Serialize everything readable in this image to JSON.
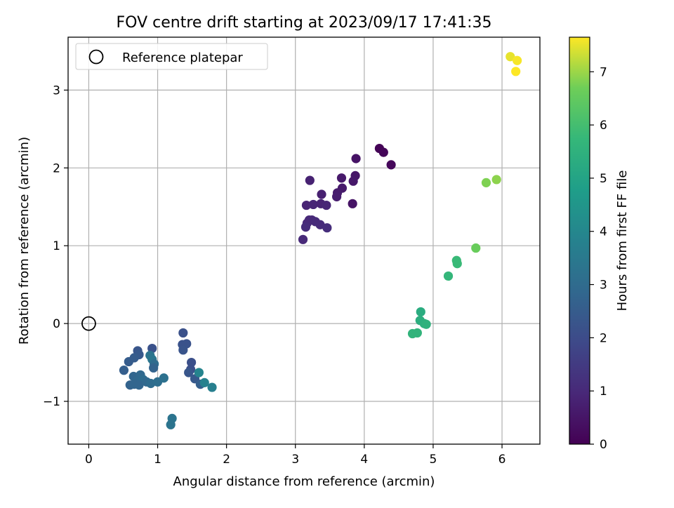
{
  "chart_data": {
    "type": "scatter",
    "title": "FOV centre drift starting at 2023/09/17 17:41:35",
    "xlabel": "Angular distance from reference (arcmin)",
    "ylabel": "Rotation from reference (arcmin)",
    "xlim": [
      -0.3,
      6.55
    ],
    "ylim": [
      -1.55,
      3.68
    ],
    "xticks": [
      0,
      1,
      2,
      3,
      4,
      5,
      6
    ],
    "yticks": [
      -1,
      0,
      1,
      2,
      3
    ],
    "grid": true,
    "legend": {
      "position": "top-left",
      "entries": [
        {
          "label": "Reference platepar",
          "marker": "open-circle"
        }
      ]
    },
    "reference_point": {
      "x": 0,
      "y": 0
    },
    "colorbar": {
      "label": "Hours from first FF file",
      "min": 0,
      "max": 7.65,
      "ticks": [
        0,
        1,
        2,
        3,
        4,
        5,
        6,
        7
      ],
      "colormap": "viridis"
    },
    "points": [
      {
        "x": 4.22,
        "y": 2.25,
        "c": 0.05
      },
      {
        "x": 4.28,
        "y": 2.2,
        "c": 0.1
      },
      {
        "x": 4.39,
        "y": 2.04,
        "c": 0.15
      },
      {
        "x": 3.88,
        "y": 2.12,
        "c": 0.45
      },
      {
        "x": 3.87,
        "y": 1.9,
        "c": 0.5
      },
      {
        "x": 3.84,
        "y": 1.83,
        "c": 0.55
      },
      {
        "x": 3.67,
        "y": 1.87,
        "c": 0.6
      },
      {
        "x": 3.68,
        "y": 1.74,
        "c": 0.62
      },
      {
        "x": 3.61,
        "y": 1.68,
        "c": 0.65
      },
      {
        "x": 3.6,
        "y": 1.63,
        "c": 0.68
      },
      {
        "x": 3.83,
        "y": 1.54,
        "c": 0.45
      },
      {
        "x": 3.38,
        "y": 1.66,
        "c": 0.75
      },
      {
        "x": 3.21,
        "y": 1.84,
        "c": 0.8
      },
      {
        "x": 3.16,
        "y": 1.52,
        "c": 0.85
      },
      {
        "x": 3.26,
        "y": 1.53,
        "c": 0.9
      },
      {
        "x": 3.37,
        "y": 1.54,
        "c": 0.85
      },
      {
        "x": 3.45,
        "y": 1.52,
        "c": 0.9
      },
      {
        "x": 3.2,
        "y": 1.33,
        "c": 0.95
      },
      {
        "x": 3.24,
        "y": 1.33,
        "c": 1.0
      },
      {
        "x": 3.17,
        "y": 1.29,
        "c": 1.0
      },
      {
        "x": 3.29,
        "y": 1.31,
        "c": 1.05
      },
      {
        "x": 3.15,
        "y": 1.24,
        "c": 1.1
      },
      {
        "x": 3.36,
        "y": 1.27,
        "c": 1.05
      },
      {
        "x": 3.46,
        "y": 1.23,
        "c": 1.1
      },
      {
        "x": 3.11,
        "y": 1.08,
        "c": 1.0
      },
      {
        "x": 1.37,
        "y": -0.12,
        "c": 2.15
      },
      {
        "x": 1.36,
        "y": -0.27,
        "c": 2.2
      },
      {
        "x": 1.42,
        "y": -0.26,
        "c": 2.2
      },
      {
        "x": 1.37,
        "y": -0.34,
        "c": 2.25
      },
      {
        "x": 1.49,
        "y": -0.5,
        "c": 2.1
      },
      {
        "x": 1.48,
        "y": -0.59,
        "c": 2.1
      },
      {
        "x": 1.45,
        "y": -0.63,
        "c": 2.3
      },
      {
        "x": 1.54,
        "y": -0.71,
        "c": 2.4
      },
      {
        "x": 1.62,
        "y": -0.78,
        "c": 2.6
      },
      {
        "x": 0.92,
        "y": -0.32,
        "c": 2.2
      },
      {
        "x": 0.71,
        "y": -0.35,
        "c": 2.3
      },
      {
        "x": 0.73,
        "y": -0.4,
        "c": 2.4
      },
      {
        "x": 0.58,
        "y": -0.49,
        "c": 2.5
      },
      {
        "x": 0.66,
        "y": -0.44,
        "c": 2.5
      },
      {
        "x": 0.51,
        "y": -0.6,
        "c": 2.6
      },
      {
        "x": 0.89,
        "y": -0.41,
        "c": 3.3
      },
      {
        "x": 0.92,
        "y": -0.46,
        "c": 3.4
      },
      {
        "x": 0.95,
        "y": -0.52,
        "c": 3.0
      },
      {
        "x": 0.94,
        "y": -0.57,
        "c": 2.7
      },
      {
        "x": 0.65,
        "y": -0.68,
        "c": 2.8
      },
      {
        "x": 0.75,
        "y": -0.66,
        "c": 2.9
      },
      {
        "x": 0.7,
        "y": -0.74,
        "c": 2.9
      },
      {
        "x": 0.79,
        "y": -0.72,
        "c": 3.0
      },
      {
        "x": 0.6,
        "y": -0.79,
        "c": 2.7
      },
      {
        "x": 0.66,
        "y": -0.78,
        "c": 2.8
      },
      {
        "x": 0.73,
        "y": -0.79,
        "c": 2.8
      },
      {
        "x": 0.84,
        "y": -0.75,
        "c": 2.9
      },
      {
        "x": 0.9,
        "y": -0.77,
        "c": 3.0
      },
      {
        "x": 1.0,
        "y": -0.75,
        "c": 3.1
      },
      {
        "x": 1.09,
        "y": -0.7,
        "c": 3.2
      },
      {
        "x": 1.6,
        "y": -0.63,
        "c": 3.9
      },
      {
        "x": 1.68,
        "y": -0.76,
        "c": 3.8
      },
      {
        "x": 1.79,
        "y": -0.82,
        "c": 3.7
      },
      {
        "x": 1.21,
        "y": -1.22,
        "c": 3.3
      },
      {
        "x": 1.19,
        "y": -1.3,
        "c": 3.3
      },
      {
        "x": 4.82,
        "y": 0.15,
        "c": 5.3
      },
      {
        "x": 4.81,
        "y": 0.04,
        "c": 5.4
      },
      {
        "x": 4.87,
        "y": 0.0,
        "c": 5.45
      },
      {
        "x": 4.9,
        "y": -0.01,
        "c": 5.5
      },
      {
        "x": 4.7,
        "y": -0.13,
        "c": 5.6
      },
      {
        "x": 4.77,
        "y": -0.12,
        "c": 5.6
      },
      {
        "x": 5.22,
        "y": 0.61,
        "c": 5.7
      },
      {
        "x": 5.34,
        "y": 0.81,
        "c": 5.8
      },
      {
        "x": 5.35,
        "y": 0.77,
        "c": 5.8
      },
      {
        "x": 5.62,
        "y": 0.97,
        "c": 6.6
      },
      {
        "x": 5.77,
        "y": 1.81,
        "c": 6.8
      },
      {
        "x": 5.92,
        "y": 1.85,
        "c": 6.9
      },
      {
        "x": 6.12,
        "y": 3.43,
        "c": 7.5
      },
      {
        "x": 6.22,
        "y": 3.38,
        "c": 7.6
      },
      {
        "x": 6.2,
        "y": 3.24,
        "c": 7.65
      }
    ]
  }
}
